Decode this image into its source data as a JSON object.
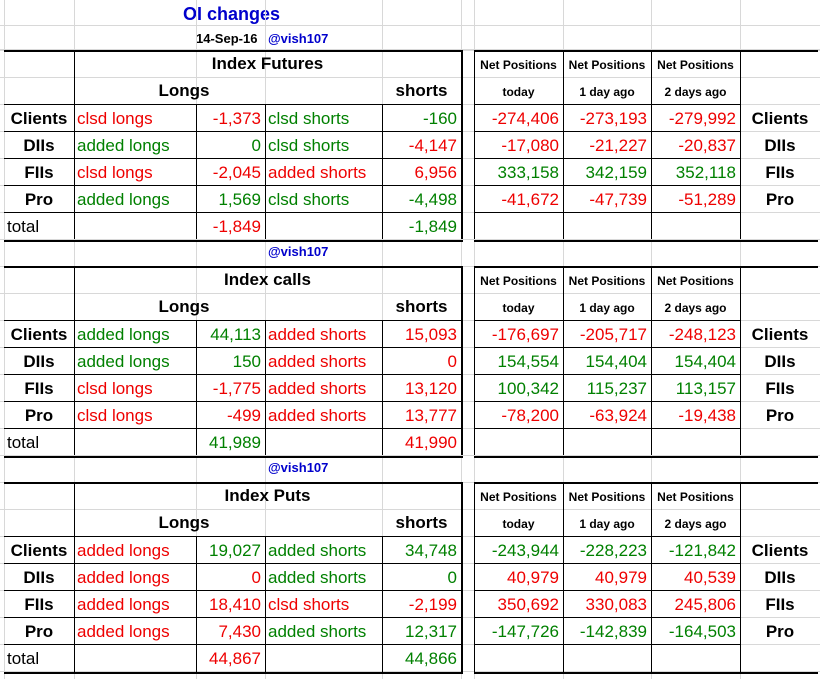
{
  "header": {
    "title": "OI changes",
    "date": "14-Sep-16",
    "handle": "@vish107"
  },
  "colors": {
    "red": "#ee0000",
    "green": "#008000",
    "blue": "#0000cc",
    "grid": "#d8d8d8"
  },
  "net_headers": {
    "label": "Net Positions",
    "periods": [
      "today",
      "1 day ago",
      "2 days ago"
    ]
  },
  "sections": [
    {
      "title": "Index Futures",
      "longs_label": "Longs",
      "shorts_label": "shorts",
      "rows": [
        {
          "name": "Clients",
          "long_action": "clsd longs",
          "long_action_color": "red",
          "long_val": "-1,373",
          "long_val_color": "red",
          "short_action": "clsd shorts",
          "short_action_color": "green",
          "short_val": "-160",
          "short_val_color": "green",
          "net": [
            "-274,406",
            "-273,193",
            "-279,992"
          ],
          "net_colors": [
            "red",
            "red",
            "red"
          ]
        },
        {
          "name": "DIIs",
          "long_action": "added longs",
          "long_action_color": "green",
          "long_val": "0",
          "long_val_color": "green",
          "short_action": "clsd shorts",
          "short_action_color": "green",
          "short_val": "-4,147",
          "short_val_color": "red",
          "net": [
            "-17,080",
            "-21,227",
            "-20,837"
          ],
          "net_colors": [
            "red",
            "red",
            "red"
          ]
        },
        {
          "name": "FIIs",
          "long_action": "clsd longs",
          "long_action_color": "red",
          "long_val": "-2,045",
          "long_val_color": "red",
          "short_action": "added shorts",
          "short_action_color": "red",
          "short_val": "6,956",
          "short_val_color": "red",
          "net": [
            "333,158",
            "342,159",
            "352,118"
          ],
          "net_colors": [
            "green",
            "green",
            "green"
          ]
        },
        {
          "name": "Pro",
          "long_action": "added longs",
          "long_action_color": "green",
          "long_val": "1,569",
          "long_val_color": "green",
          "short_action": "clsd shorts",
          "short_action_color": "green",
          "short_val": "-4,498",
          "short_val_color": "green",
          "net": [
            "-41,672",
            "-47,739",
            "-51,289"
          ],
          "net_colors": [
            "red",
            "red",
            "red"
          ]
        }
      ],
      "total": {
        "label": "total",
        "long": "-1,849",
        "long_color": "red",
        "short": "-1,849",
        "short_color": "green"
      }
    },
    {
      "title": "Index calls",
      "longs_label": "Longs",
      "shorts_label": "shorts",
      "rows": [
        {
          "name": "Clients",
          "long_action": "added longs",
          "long_action_color": "green",
          "long_val": "44,113",
          "long_val_color": "green",
          "short_action": "added shorts",
          "short_action_color": "red",
          "short_val": "15,093",
          "short_val_color": "red",
          "net": [
            "-176,697",
            "-205,717",
            "-248,123"
          ],
          "net_colors": [
            "red",
            "red",
            "red"
          ]
        },
        {
          "name": "DIIs",
          "long_action": "added longs",
          "long_action_color": "green",
          "long_val": "150",
          "long_val_color": "green",
          "short_action": "added shorts",
          "short_action_color": "red",
          "short_val": "0",
          "short_val_color": "red",
          "net": [
            "154,554",
            "154,404",
            "154,404"
          ],
          "net_colors": [
            "green",
            "green",
            "green"
          ]
        },
        {
          "name": "FIIs",
          "long_action": "clsd longs",
          "long_action_color": "red",
          "long_val": "-1,775",
          "long_val_color": "red",
          "short_action": "added shorts",
          "short_action_color": "red",
          "short_val": "13,120",
          "short_val_color": "red",
          "net": [
            "100,342",
            "115,237",
            "113,157"
          ],
          "net_colors": [
            "green",
            "green",
            "green"
          ]
        },
        {
          "name": "Pro",
          "long_action": "clsd longs",
          "long_action_color": "red",
          "long_val": "-499",
          "long_val_color": "red",
          "short_action": "added shorts",
          "short_action_color": "red",
          "short_val": "13,777",
          "short_val_color": "red",
          "net": [
            "-78,200",
            "-63,924",
            "-19,438"
          ],
          "net_colors": [
            "red",
            "red",
            "red"
          ]
        }
      ],
      "total": {
        "label": "total",
        "long": "41,989",
        "long_color": "green",
        "short": "41,990",
        "short_color": "red"
      }
    },
    {
      "title": "Index Puts",
      "longs_label": "Longs",
      "shorts_label": "shorts",
      "rows": [
        {
          "name": "Clients",
          "long_action": "added longs",
          "long_action_color": "red",
          "long_val": "19,027",
          "long_val_color": "green",
          "short_action": "added shorts",
          "short_action_color": "green",
          "short_val": "34,748",
          "short_val_color": "green",
          "net": [
            "-243,944",
            "-228,223",
            "-121,842"
          ],
          "net_colors": [
            "green",
            "green",
            "green"
          ]
        },
        {
          "name": "DIIs",
          "long_action": "added longs",
          "long_action_color": "red",
          "long_val": "0",
          "long_val_color": "red",
          "short_action": "added shorts",
          "short_action_color": "green",
          "short_val": "0",
          "short_val_color": "green",
          "net": [
            "40,979",
            "40,979",
            "40,539"
          ],
          "net_colors": [
            "red",
            "red",
            "red"
          ]
        },
        {
          "name": "FIIs",
          "long_action": "added longs",
          "long_action_color": "red",
          "long_val": "18,410",
          "long_val_color": "red",
          "short_action": "clsd shorts",
          "short_action_color": "red",
          "short_val": "-2,199",
          "short_val_color": "red",
          "net": [
            "350,692",
            "330,083",
            "245,806"
          ],
          "net_colors": [
            "red",
            "red",
            "red"
          ]
        },
        {
          "name": "Pro",
          "long_action": "added longs",
          "long_action_color": "red",
          "long_val": "7,430",
          "long_val_color": "red",
          "short_action": "added shorts",
          "short_action_color": "green",
          "short_val": "12,317",
          "short_val_color": "green",
          "net": [
            "-147,726",
            "-142,839",
            "-164,503"
          ],
          "net_colors": [
            "green",
            "green",
            "green"
          ]
        }
      ],
      "total": {
        "label": "total",
        "long": "44,867",
        "long_color": "red",
        "short": "44,866",
        "short_color": "green"
      }
    }
  ]
}
